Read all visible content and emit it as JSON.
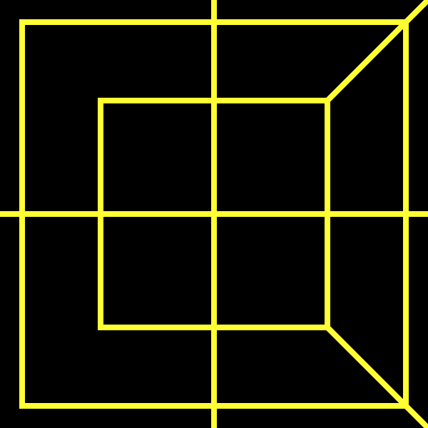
{
  "colors": {
    "background": "#000000",
    "stroke": "#ffff33"
  },
  "elements": {
    "outer_square": "outer-square",
    "inner_square": "inner-square",
    "vertical_axis": "vertical-axis-line",
    "horizontal_axis": "horizontal-axis-line",
    "diagonal_top": "top-right-diagonal-line",
    "diagonal_bottom": "bottom-right-diagonal-line"
  }
}
